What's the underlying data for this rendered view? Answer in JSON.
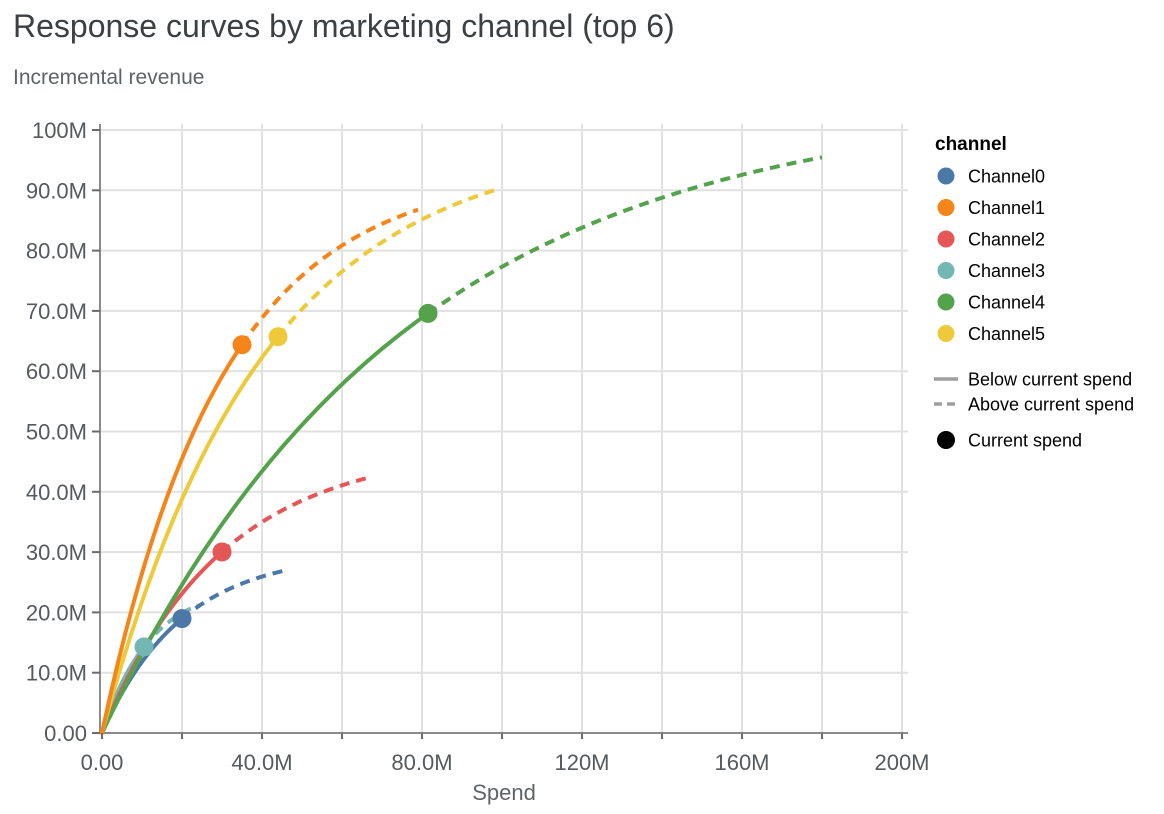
{
  "chart_data": {
    "type": "line",
    "title": "Response curves by marketing channel (top 6)",
    "subtitle": "Incremental revenue",
    "xlabel": "Spend",
    "ylabel": "Incremental revenue",
    "units": "millions",
    "xlim_m": [
      0,
      201
    ],
    "ylim_m": [
      0,
      101
    ],
    "grid": true,
    "x_grid_step_m": 20,
    "y_grid_step_m": 10,
    "x_ticks": [
      {
        "m": 0,
        "label": "0.00"
      },
      {
        "m": 40,
        "label": "40.0M"
      },
      {
        "m": 80,
        "label": "80.0M"
      },
      {
        "m": 120,
        "label": "120M"
      },
      {
        "m": 160,
        "label": "160M"
      },
      {
        "m": 200,
        "label": "200M"
      }
    ],
    "y_ticks": [
      {
        "m": 0,
        "label": "0.00"
      },
      {
        "m": 10,
        "label": "10.0M"
      },
      {
        "m": 20,
        "label": "20.0M"
      },
      {
        "m": 30,
        "label": "30.0M"
      },
      {
        "m": 40,
        "label": "40.0M"
      },
      {
        "m": 50,
        "label": "50.0M"
      },
      {
        "m": 60,
        "label": "60.0M"
      },
      {
        "m": 70,
        "label": "70.0M"
      },
      {
        "m": 80,
        "label": "80.0M"
      },
      {
        "m": 90,
        "label": "90.0M"
      },
      {
        "m": 100,
        "label": "100M"
      }
    ],
    "legend": {
      "position": "right",
      "title": "channel",
      "channels": [
        {
          "name": "Channel0",
          "color": "#4c78a8"
        },
        {
          "name": "Channel1",
          "color": "#f58518"
        },
        {
          "name": "Channel2",
          "color": "#e45756"
        },
        {
          "name": "Channel3",
          "color": "#72b7b2"
        },
        {
          "name": "Channel4",
          "color": "#54a24b"
        },
        {
          "name": "Channel5",
          "color": "#eeca3b"
        }
      ],
      "styles": [
        {
          "label": "Below current spend",
          "dashed": false
        },
        {
          "label": "Above current spend",
          "dashed": true
        }
      ],
      "point": {
        "label": "Current spend",
        "color": "#000000"
      }
    },
    "series": [
      {
        "name": "Channel0",
        "color": "#4c78a8",
        "current_spend_m": 20,
        "current_revenue_m": 19.0,
        "max_spend_m": 46,
        "end_revenue_m": 27.4,
        "curve": {
          "model": "A*(1-exp(-x/k))",
          "A_m": 30,
          "k_m": 20
        }
      },
      {
        "name": "Channel1",
        "color": "#f58518",
        "current_spend_m": 35,
        "current_revenue_m": 64.4,
        "max_spend_m": 79,
        "end_revenue_m": 87.7,
        "curve": {
          "model": "A*(1-exp(-x/k))",
          "A_m": 93.5,
          "k_m": 30
        }
      },
      {
        "name": "Channel2",
        "color": "#e45756",
        "current_spend_m": 30,
        "current_revenue_m": 30.0,
        "max_spend_m": 66,
        "end_revenue_m": 42.0,
        "curve": {
          "model": "A*(1-exp(-x/k))",
          "A_m": 47.5,
          "k_m": 30
        }
      },
      {
        "name": "Channel3",
        "color": "#72b7b2",
        "current_spend_m": 10.5,
        "current_revenue_m": 14.3,
        "max_spend_m": 24,
        "end_revenue_m": 21.2,
        "curve": {
          "model": "A*(1-exp(-x/k))",
          "A_m": 24.5,
          "k_m": 12
        }
      },
      {
        "name": "Channel4",
        "color": "#54a24b",
        "current_spend_m": 81.5,
        "current_revenue_m": 69.8,
        "max_spend_m": 180,
        "end_revenue_m": 95.5,
        "curve": {
          "model": "A*(1-exp(-x/k))",
          "A_m": 105,
          "k_m": 75
        }
      },
      {
        "name": "Channel5",
        "color": "#eeca3b",
        "current_spend_m": 44,
        "current_revenue_m": 65.9,
        "max_spend_m": 98,
        "end_revenue_m": 90.0,
        "curve": {
          "model": "A*(1-exp(-x/k))",
          "A_m": 98.5,
          "k_m": 40
        }
      }
    ],
    "draw_order": [
      "Channel3",
      "Channel0",
      "Channel2",
      "Channel4",
      "Channel5",
      "Channel1"
    ],
    "style_colors": {
      "axis_line": "#898b8d",
      "gridline": "#e1e1e1",
      "tick_mark": "#6b6b6b",
      "tick_label": "#565a5e",
      "axis_title": "#5f6368",
      "legend_text": "#000000",
      "legend_line": "#9e9e9e",
      "title_text": "#3c4043",
      "subtitle_text": "#5f6368"
    }
  }
}
